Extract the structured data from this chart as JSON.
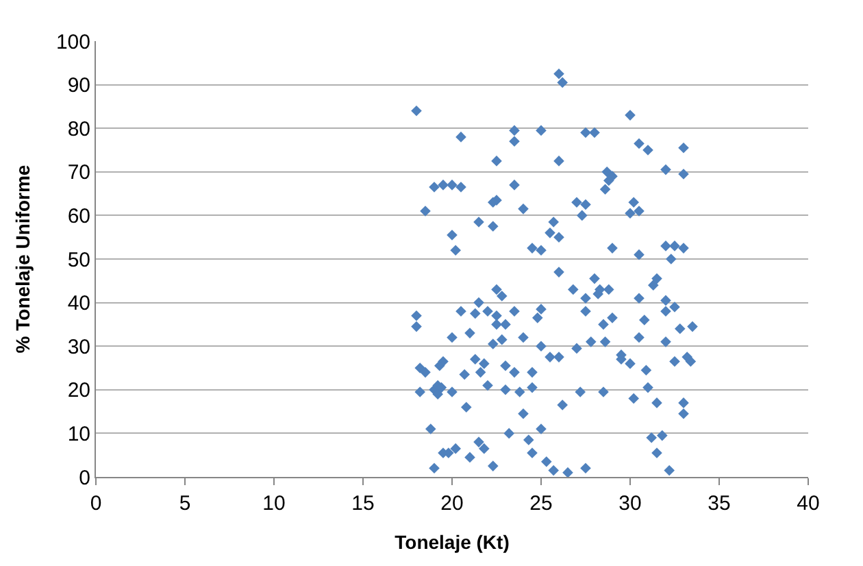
{
  "chart_data": {
    "type": "scatter",
    "xlabel": "Tonelaje (Kt)",
    "ylabel": "% Tonelaje Uniforme",
    "xlim": [
      0,
      40
    ],
    "xticks": [
      0,
      5,
      10,
      15,
      20,
      25,
      30,
      35,
      40
    ],
    "ylim": [
      0,
      100
    ],
    "yticks": [
      0,
      10,
      20,
      30,
      40,
      50,
      60,
      70,
      80,
      90,
      100
    ],
    "grid": "y",
    "marker": "diamond",
    "series": [
      {
        "color": "#4f81bd",
        "x": [
          26,
          26.2,
          18,
          30,
          20.5,
          23.5,
          23.5,
          25,
          27.5,
          28,
          30.5,
          31,
          33,
          32,
          33,
          28.7,
          29,
          28.8,
          19,
          19.5,
          20,
          20.5,
          23.5,
          26,
          22.5,
          18.5,
          22.5,
          22.3,
          22.3,
          21.5,
          24,
          27,
          27.5,
          27.3,
          28.6,
          30,
          30.5,
          30.2,
          32,
          32.5,
          33,
          32.3,
          29,
          25.7,
          25.5,
          25,
          26,
          24.5,
          20,
          20.2,
          18,
          18,
          18.2,
          18.5,
          18.2,
          18.8,
          19,
          19.2,
          19.4,
          19.5,
          19.3,
          19.2,
          19.5,
          19.8,
          19,
          20,
          20,
          20.2,
          20.7,
          20.8,
          21,
          21,
          21.3,
          21.5,
          21.3,
          21.6,
          21.8,
          21.5,
          21.8,
          22,
          22,
          22.3,
          22.5,
          22.5,
          22.3,
          22.5,
          22.8,
          22.8,
          23,
          23,
          23.2,
          23.5,
          23.5,
          23.8,
          24,
          24,
          24.3,
          24.5,
          24.5,
          24.5,
          24.8,
          25,
          25,
          25,
          25.5,
          25.3,
          25.7,
          26,
          26,
          26.2,
          26.5,
          26.8,
          27,
          27.2,
          27.5,
          27.5,
          27.5,
          27.8,
          28,
          28.2,
          28.3,
          28.5,
          28.5,
          28.8,
          28.6,
          29,
          29.5,
          29.5,
          30,
          30.2,
          30.5,
          30.5,
          30.8,
          30.9,
          31,
          31.2,
          31.5,
          31.5,
          31.8,
          31.5,
          32,
          32,
          32,
          32.2,
          32.5,
          32.8,
          33,
          33,
          33.2,
          33.4,
          33.5,
          30.5,
          32.5,
          20.5,
          23,
          31.3
        ],
        "values": [
          92.5,
          90.5,
          84,
          83,
          78,
          79.5,
          77,
          79.5,
          79,
          79,
          76.5,
          75,
          75.5,
          70.5,
          69.5,
          70,
          69,
          68,
          66.5,
          67,
          67,
          66.5,
          67,
          72.5,
          72.5,
          61,
          63.5,
          63,
          57.5,
          58.5,
          61.5,
          63,
          62.5,
          60,
          66,
          60.5,
          61,
          63,
          53,
          53,
          52.5,
          50,
          52.5,
          58.5,
          56,
          52,
          55,
          52.5,
          55.5,
          52,
          37,
          34.5,
          25,
          24,
          19.5,
          11,
          20,
          21,
          20.5,
          26.5,
          25.5,
          19,
          5.5,
          5.5,
          2,
          32,
          19.5,
          6.5,
          23.5,
          16,
          4.5,
          33,
          37.5,
          40,
          27,
          24,
          26,
          8,
          6.5,
          38,
          21,
          2.5,
          37,
          43,
          30.5,
          35,
          41.5,
          31.5,
          25.5,
          20,
          10,
          38,
          24,
          19.5,
          32,
          14.5,
          8.5,
          24,
          20.5,
          5.5,
          36.5,
          38.5,
          30,
          11,
          27.5,
          3.5,
          1.5,
          47,
          27.5,
          16.5,
          1,
          43,
          29.5,
          19.5,
          38,
          41,
          2,
          31,
          45.5,
          42,
          43,
          35,
          19.5,
          43,
          31,
          36.5,
          28,
          27,
          26,
          18,
          32,
          41,
          36,
          24.5,
          20.5,
          9,
          45.5,
          17,
          9.5,
          5.5,
          40.5,
          38,
          31,
          1.5,
          26.5,
          34,
          14.5,
          17,
          27.5,
          26.5,
          34.5,
          51,
          39,
          38,
          35,
          44
        ]
      }
    ]
  }
}
